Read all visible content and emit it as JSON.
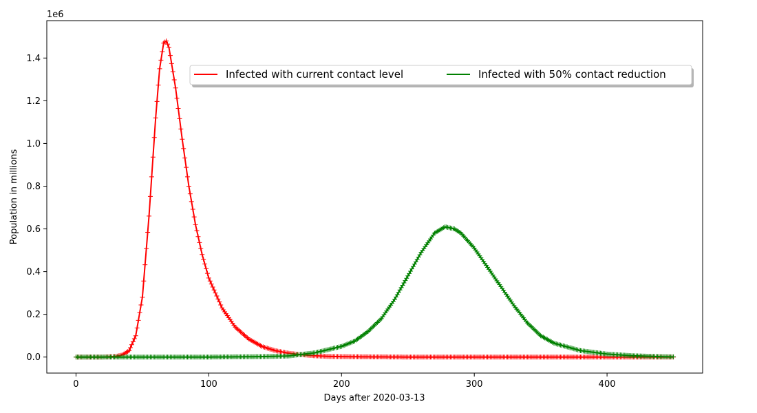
{
  "chart_data": {
    "type": "line",
    "title": "",
    "xlabel": "Days after 2020-03-13",
    "ylabel": "Population in millions",
    "y_offset_label": "1e6",
    "xlim": [
      -22,
      472
    ],
    "ylim": [
      -0.075,
      1.575
    ],
    "xticks": [
      0,
      100,
      200,
      300,
      400
    ],
    "xtick_labels": [
      "0",
      "100",
      "200",
      "300",
      "400"
    ],
    "yticks": [
      0.0,
      0.2,
      0.4,
      0.6,
      0.8,
      1.0,
      1.2,
      1.4
    ],
    "ytick_labels": [
      "0.0",
      "0.2",
      "0.4",
      "0.6",
      "0.8",
      "1.0",
      "1.2",
      "1.4"
    ],
    "grid": false,
    "legend_placement": "upper right",
    "legend_ncol": 2,
    "marker": "+",
    "series": [
      {
        "name": "Infected with current contact level",
        "color": "#ff0000",
        "x": [
          0,
          20,
          30,
          35,
          40,
          45,
          50,
          55,
          60,
          63,
          66,
          68,
          70,
          75,
          80,
          85,
          90,
          95,
          100,
          110,
          120,
          130,
          140,
          150,
          160,
          170,
          180,
          190,
          200,
          220,
          250,
          300,
          350,
          400,
          450
        ],
        "y": [
          0.0,
          0.0,
          0.003,
          0.01,
          0.03,
          0.1,
          0.28,
          0.66,
          1.12,
          1.35,
          1.47,
          1.48,
          1.45,
          1.26,
          1.02,
          0.8,
          0.62,
          0.48,
          0.37,
          0.23,
          0.14,
          0.085,
          0.05,
          0.03,
          0.018,
          0.011,
          0.006,
          0.003,
          0.002,
          0.001,
          0.0,
          0.0,
          0.0,
          0.0,
          0.0
        ]
      },
      {
        "name": "Infected with 50% contact reduction",
        "color": "#008000",
        "x": [
          0,
          100,
          140,
          160,
          180,
          200,
          210,
          220,
          230,
          240,
          250,
          260,
          270,
          278,
          285,
          290,
          300,
          310,
          320,
          330,
          340,
          350,
          360,
          380,
          400,
          420,
          440,
          450
        ],
        "y": [
          0.0,
          0.0,
          0.002,
          0.005,
          0.02,
          0.05,
          0.075,
          0.12,
          0.18,
          0.27,
          0.38,
          0.49,
          0.58,
          0.61,
          0.6,
          0.58,
          0.51,
          0.42,
          0.33,
          0.24,
          0.16,
          0.1,
          0.065,
          0.03,
          0.014,
          0.006,
          0.002,
          0.001
        ]
      }
    ]
  }
}
